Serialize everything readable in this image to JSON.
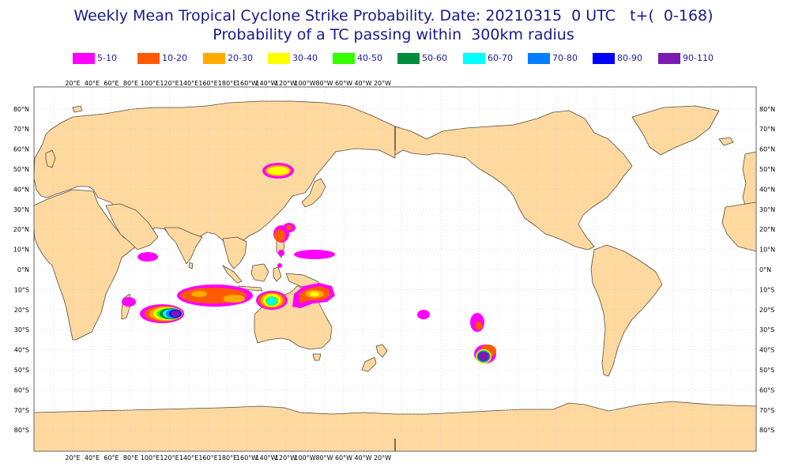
{
  "title_line1": "Weekly Mean Tropical Cyclone Strike Probability. Date: 20210315  0 UTC   t+(  0-168)",
  "title_line2": "Probability of a TC passing within  300km radius",
  "legend": [
    {
      "label": "5-10",
      "color": "#ff00ff"
    },
    {
      "label": "10-20",
      "color": "#ff5a00"
    },
    {
      "label": "20-30",
      "color": "#ffaa00"
    },
    {
      "label": "30-40",
      "color": "#ffff00"
    },
    {
      "label": "40-50",
      "color": "#33ff00"
    },
    {
      "label": "50-60",
      "color": "#008c3c"
    },
    {
      "label": "60-70",
      "color": "#00ffff"
    },
    {
      "label": "70-80",
      "color": "#0080ff"
    },
    {
      "label": "80-90",
      "color": "#0000ff"
    },
    {
      "label": "90-110",
      "color": "#7a1ab3"
    }
  ],
  "lon_labels": [
    "20°E",
    "40°E",
    "60°E",
    "80°E",
    "100°E",
    "120°E",
    "140°E",
    "160°E",
    "180°E",
    "160°W",
    "140°W",
    "120°W",
    "100°W",
    "80°W",
    "60°W",
    "40°W",
    "20°W"
  ],
  "lat_labels": [
    "80°N",
    "70°N",
    "60°N",
    "50°N",
    "40°N",
    "30°N",
    "20°N",
    "10°N",
    "0°N",
    "10°S",
    "20°S",
    "30°S",
    "40°S",
    "50°S",
    "60°S",
    "70°S",
    "80°S"
  ],
  "colors": {
    "land": "#fdd9a0",
    "coast": "#5a4a3a",
    "grid": "#c8c8c8",
    "ocean": "#ffffff"
  }
}
